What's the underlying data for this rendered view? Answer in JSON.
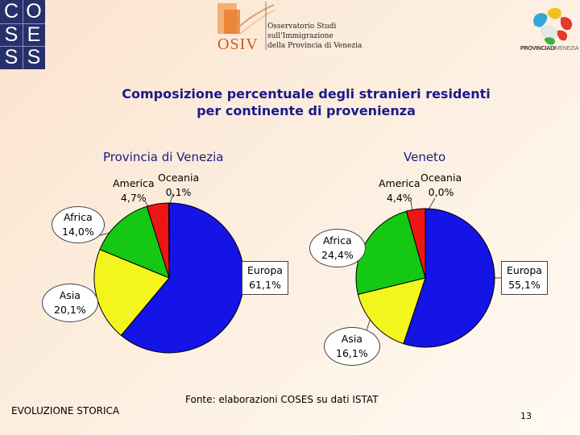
{
  "header": {
    "coses_letters": [
      "C",
      "O",
      "S",
      "E",
      "S",
      "S"
    ],
    "osiv_mark": "OSIV",
    "osiv_lines": [
      "Osservatorio Studi",
      "sull'Immigrazione",
      "della Provincia di Venezia"
    ],
    "provincia_bold": "PROVINCIADI",
    "provincia_light": "VENEZIA"
  },
  "title_line1": "Composizione percentuale degli stranieri residenti",
  "title_line2": "per continente di provenienza",
  "colors": {
    "europa": "#1414e6",
    "asia": "#f5f51e",
    "africa": "#14c814",
    "america": "#f01414",
    "oceania": "#000000"
  },
  "chart_data": [
    {
      "type": "pie",
      "title": "Provincia di Venezia",
      "categories": [
        "Europa",
        "Asia",
        "Africa",
        "America",
        "Oceania"
      ],
      "values": [
        61.1,
        20.1,
        14.0,
        4.7,
        0.1
      ],
      "labels": [
        {
          "name": "Europa",
          "value": "61,1%"
        },
        {
          "name": "Asia",
          "value": "20,1%"
        },
        {
          "name": "Africa",
          "value": "14,0%"
        },
        {
          "name": "America",
          "value": "4,7%"
        },
        {
          "name": "Oceania",
          "value": "0,1%"
        }
      ]
    },
    {
      "type": "pie",
      "title": "Veneto",
      "categories": [
        "Europa",
        "Asia",
        "Africa",
        "America",
        "Oceania"
      ],
      "values": [
        55.1,
        16.1,
        24.4,
        4.4,
        0.0
      ],
      "labels": [
        {
          "name": "Europa",
          "value": "55,1%"
        },
        {
          "name": "Asia",
          "value": "16,1%"
        },
        {
          "name": "Africa",
          "value": "24,4%"
        },
        {
          "name": "America",
          "value": "4,4%"
        },
        {
          "name": "Oceania",
          "value": "0,0%"
        }
      ]
    }
  ],
  "footer": {
    "section": "EVOLUZIONE STORICA",
    "source": "Fonte: elaborazioni COSES su dati ISTAT",
    "page": "13"
  }
}
